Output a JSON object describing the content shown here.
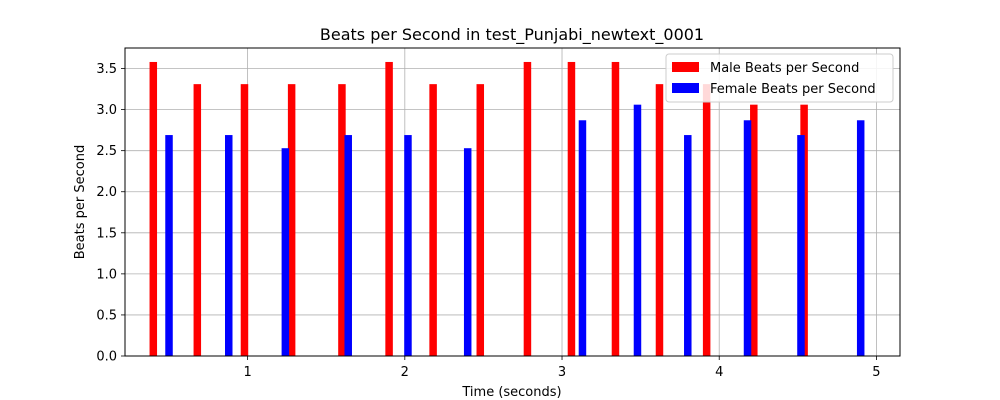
{
  "chart_data": {
    "type": "bar",
    "title": "Beats per Second in test_Punjabi_newtext_0001",
    "xlabel": "Time (seconds)",
    "ylabel": "Beats per Second",
    "xlim": [
      0.22,
      5.15
    ],
    "ylim": [
      0,
      3.75
    ],
    "xticks": [
      1,
      2,
      3,
      4,
      5
    ],
    "yticks": [
      0.0,
      0.5,
      1.0,
      1.5,
      2.0,
      2.5,
      3.0,
      3.5
    ],
    "grid": true,
    "legend_position": "upper right",
    "series": [
      {
        "name": "Male Beats per Second",
        "color": "#ff0000",
        "x": [
          0.4,
          0.68,
          0.98,
          1.28,
          1.6,
          1.9,
          2.18,
          2.48,
          2.78,
          3.06,
          3.34,
          3.62,
          3.92,
          4.22,
          4.54
        ],
        "values": [
          3.58,
          3.31,
          3.31,
          3.31,
          3.31,
          3.58,
          3.31,
          3.31,
          3.58,
          3.58,
          3.58,
          3.31,
          3.31,
          3.06,
          3.06
        ]
      },
      {
        "name": "Female Beats per Second",
        "color": "#0000ff",
        "x": [
          0.5,
          0.88,
          1.24,
          1.64,
          2.02,
          2.4,
          3.13,
          3.48,
          3.8,
          4.18,
          4.52,
          4.9
        ],
        "values": [
          2.69,
          2.69,
          2.53,
          2.69,
          2.69,
          2.53,
          2.87,
          3.06,
          2.69,
          2.87,
          2.69,
          2.87
        ]
      }
    ]
  }
}
